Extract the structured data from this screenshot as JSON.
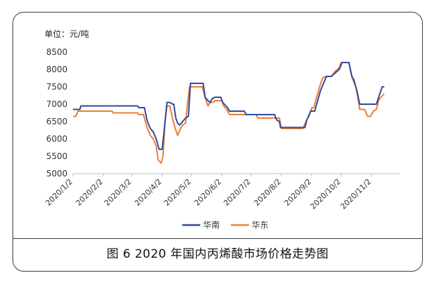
{
  "figure": {
    "unit_label": "单位：元/吨",
    "caption": "图 6  2020 年国内丙烯酸市场价格走势图"
  },
  "colors": {
    "south": "#2e4a9e",
    "east": "#ed7d31"
  },
  "chart_data": {
    "type": "line",
    "title": "",
    "xlabel": "",
    "ylabel": "",
    "ylim": [
      5000,
      8500
    ],
    "yticks": [
      5000,
      5500,
      6000,
      6500,
      7000,
      7500,
      8000,
      8500
    ],
    "xticks": [
      "2020/1/2",
      "2020/2/2",
      "2020/3/2",
      "2020/4/2",
      "2020/5/2",
      "2020/6/2",
      "2020/7/2",
      "2020/8/2",
      "2020/9/2",
      "2020/10/2",
      "2020/11/2"
    ],
    "xlim": [
      "2020-01-02",
      "2020-12-01"
    ],
    "grid": false,
    "legend": "bottom",
    "series": [
      {
        "name": "华南",
        "points": [
          [
            "2020-01-02",
            6850
          ],
          [
            "2020-01-09",
            6850
          ],
          [
            "2020-01-10",
            6950
          ],
          [
            "2020-02-05",
            6950
          ],
          [
            "2020-03-08",
            6950
          ],
          [
            "2020-03-09",
            6900
          ],
          [
            "2020-03-15",
            6900
          ],
          [
            "2020-03-18",
            6500
          ],
          [
            "2020-03-21",
            6300
          ],
          [
            "2020-03-24",
            6200
          ],
          [
            "2020-03-27",
            6000
          ],
          [
            "2020-03-30",
            5700
          ],
          [
            "2020-04-02",
            5700
          ],
          [
            "2020-04-04",
            6200
          ],
          [
            "2020-04-07",
            7050
          ],
          [
            "2020-04-10",
            7050
          ],
          [
            "2020-04-13",
            7000
          ],
          [
            "2020-04-14",
            7000
          ],
          [
            "2020-04-16",
            6600
          ],
          [
            "2020-04-18",
            6450
          ],
          [
            "2020-04-20",
            6400
          ],
          [
            "2020-04-23",
            6500
          ],
          [
            "2020-04-26",
            6600
          ],
          [
            "2020-04-29",
            6650
          ],
          [
            "2020-05-01",
            7600
          ],
          [
            "2020-05-14",
            7600
          ],
          [
            "2020-05-16",
            7200
          ],
          [
            "2020-05-19",
            7100
          ],
          [
            "2020-05-21",
            7050
          ],
          [
            "2020-05-23",
            7150
          ],
          [
            "2020-05-26",
            7200
          ],
          [
            "2020-06-01",
            7200
          ],
          [
            "2020-06-03",
            7050
          ],
          [
            "2020-06-08",
            6900
          ],
          [
            "2020-06-10",
            6800
          ],
          [
            "2020-06-25",
            6800
          ],
          [
            "2020-06-27",
            6700
          ],
          [
            "2020-07-26",
            6700
          ],
          [
            "2020-07-28",
            6550
          ],
          [
            "2020-07-31",
            6500
          ],
          [
            "2020-08-01",
            6330
          ],
          [
            "2020-08-26",
            6330
          ],
          [
            "2020-08-28",
            6550
          ],
          [
            "2020-09-01",
            6800
          ],
          [
            "2020-09-05",
            6800
          ],
          [
            "2020-09-08",
            7100
          ],
          [
            "2020-09-11",
            7400
          ],
          [
            "2020-09-14",
            7600
          ],
          [
            "2020-09-17",
            7800
          ],
          [
            "2020-09-22",
            7800
          ],
          [
            "2020-09-26",
            7900
          ],
          [
            "2020-09-30",
            8000
          ],
          [
            "2020-10-03",
            8200
          ],
          [
            "2020-10-10",
            8200
          ],
          [
            "2020-10-13",
            7800
          ],
          [
            "2020-10-15",
            7700
          ],
          [
            "2020-10-18",
            7400
          ],
          [
            "2020-10-21",
            7000
          ],
          [
            "2020-11-07",
            7000
          ],
          [
            "2020-11-10",
            7250
          ],
          [
            "2020-11-13",
            7500
          ],
          [
            "2020-11-15",
            7500
          ]
        ]
      },
      {
        "name": "华东",
        "points": [
          [
            "2020-01-02",
            6650
          ],
          [
            "2020-01-05",
            6650
          ],
          [
            "2020-01-07",
            6800
          ],
          [
            "2020-02-11",
            6800
          ],
          [
            "2020-02-12",
            6750
          ],
          [
            "2020-03-08",
            6750
          ],
          [
            "2020-03-09",
            6700
          ],
          [
            "2020-03-14",
            6700
          ],
          [
            "2020-03-18",
            6300
          ],
          [
            "2020-03-21",
            6100
          ],
          [
            "2020-03-24",
            6000
          ],
          [
            "2020-03-27",
            5800
          ],
          [
            "2020-03-29",
            5400
          ],
          [
            "2020-04-01",
            5300
          ],
          [
            "2020-04-03",
            5500
          ],
          [
            "2020-04-05",
            6500
          ],
          [
            "2020-04-07",
            6950
          ],
          [
            "2020-04-10",
            6950
          ],
          [
            "2020-04-13",
            6550
          ],
          [
            "2020-04-16",
            6250
          ],
          [
            "2020-04-18",
            6100
          ],
          [
            "2020-04-20",
            6250
          ],
          [
            "2020-04-23",
            6400
          ],
          [
            "2020-04-26",
            6450
          ],
          [
            "2020-04-28",
            7000
          ],
          [
            "2020-04-30",
            7500
          ],
          [
            "2020-05-13",
            7500
          ],
          [
            "2020-05-15",
            7300
          ],
          [
            "2020-05-17",
            7100
          ],
          [
            "2020-05-19",
            6950
          ],
          [
            "2020-05-21",
            7050
          ],
          [
            "2020-05-24",
            7050
          ],
          [
            "2020-05-26",
            7100
          ],
          [
            "2020-06-02",
            7100
          ],
          [
            "2020-06-04",
            6950
          ],
          [
            "2020-06-07",
            6850
          ],
          [
            "2020-06-10",
            6700
          ],
          [
            "2020-06-20",
            6700
          ],
          [
            "2020-07-07",
            6700
          ],
          [
            "2020-07-09",
            6600
          ],
          [
            "2020-07-31",
            6600
          ],
          [
            "2020-08-02",
            6300
          ],
          [
            "2020-08-24",
            6300
          ],
          [
            "2020-08-27",
            6500
          ],
          [
            "2020-08-30",
            6650
          ],
          [
            "2020-09-02",
            6900
          ],
          [
            "2020-09-04",
            6900
          ],
          [
            "2020-09-07",
            7200
          ],
          [
            "2020-09-10",
            7500
          ],
          [
            "2020-09-13",
            7750
          ],
          [
            "2020-09-16",
            7800
          ],
          [
            "2020-09-22",
            7800
          ],
          [
            "2020-09-26",
            7950
          ],
          [
            "2020-09-30",
            8050
          ],
          [
            "2020-10-02",
            8200
          ],
          [
            "2020-10-10",
            8200
          ],
          [
            "2020-10-12",
            7900
          ],
          [
            "2020-10-14",
            7700
          ],
          [
            "2020-10-17",
            7500
          ],
          [
            "2020-10-19",
            7200
          ],
          [
            "2020-10-21",
            6850
          ],
          [
            "2020-10-26",
            6850
          ],
          [
            "2020-10-29",
            6650
          ],
          [
            "2020-11-01",
            6650
          ],
          [
            "2020-11-04",
            6800
          ],
          [
            "2020-11-07",
            6850
          ],
          [
            "2020-11-10",
            7150
          ],
          [
            "2020-11-15",
            7300
          ]
        ]
      }
    ]
  }
}
